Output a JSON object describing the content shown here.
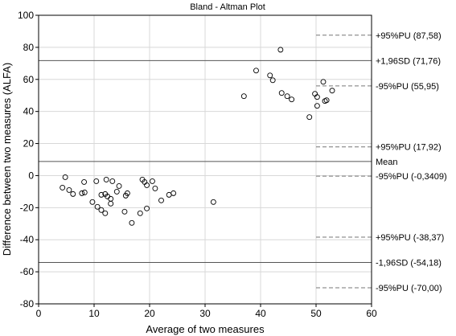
{
  "chart_data": {
    "type": "scatter",
    "title": "Bland - Altman Plot",
    "xlabel": "Average of two measures",
    "ylabel": "Difference between two measures (ALFA)",
    "xlim": [
      0,
      60
    ],
    "ylim": [
      -80,
      100
    ],
    "xticks": [
      0,
      10,
      20,
      30,
      40,
      50,
      60
    ],
    "yticks": [
      -80,
      -60,
      -40,
      -20,
      0,
      20,
      40,
      60,
      80,
      100
    ],
    "grid": true,
    "points": [
      {
        "x": 4.3,
        "y": -7.5
      },
      {
        "x": 4.8,
        "y": -1
      },
      {
        "x": 5.5,
        "y": -9
      },
      {
        "x": 6.2,
        "y": -11.5
      },
      {
        "x": 7.8,
        "y": -11
      },
      {
        "x": 8.2,
        "y": -4
      },
      {
        "x": 8.3,
        "y": -10.5
      },
      {
        "x": 9.7,
        "y": -16.5
      },
      {
        "x": 10.4,
        "y": -3.5
      },
      {
        "x": 10.6,
        "y": -19.5
      },
      {
        "x": 11.3,
        "y": -21.5
      },
      {
        "x": 11.3,
        "y": -12
      },
      {
        "x": 12.0,
        "y": -11.5
      },
      {
        "x": 12.0,
        "y": -23.5
      },
      {
        "x": 12.2,
        "y": -2.5
      },
      {
        "x": 12.4,
        "y": -13
      },
      {
        "x": 13.0,
        "y": -17.5
      },
      {
        "x": 13.0,
        "y": -14.5
      },
      {
        "x": 13.3,
        "y": -3.5
      },
      {
        "x": 14.1,
        "y": -10
      },
      {
        "x": 14.5,
        "y": -6.5
      },
      {
        "x": 15.5,
        "y": -22.5
      },
      {
        "x": 15.7,
        "y": -12.5
      },
      {
        "x": 16.0,
        "y": -11
      },
      {
        "x": 16.8,
        "y": -29.5
      },
      {
        "x": 18.3,
        "y": -23.5
      },
      {
        "x": 18.7,
        "y": -2.5
      },
      {
        "x": 19.1,
        "y": -4
      },
      {
        "x": 19.5,
        "y": -20.5
      },
      {
        "x": 19.5,
        "y": -6
      },
      {
        "x": 20.5,
        "y": -3.5
      },
      {
        "x": 21.0,
        "y": -8
      },
      {
        "x": 22.1,
        "y": -15.5
      },
      {
        "x": 23.5,
        "y": -12
      },
      {
        "x": 24.3,
        "y": -11
      },
      {
        "x": 31.5,
        "y": -16.5
      },
      {
        "x": 37.0,
        "y": 49.5
      },
      {
        "x": 39.2,
        "y": 65.5
      },
      {
        "x": 41.7,
        "y": 62.5
      },
      {
        "x": 42.2,
        "y": 59.5
      },
      {
        "x": 43.6,
        "y": 78.5
      },
      {
        "x": 43.8,
        "y": 51.5
      },
      {
        "x": 44.8,
        "y": 49.5
      },
      {
        "x": 45.6,
        "y": 47.5
      },
      {
        "x": 48.8,
        "y": 36.5
      },
      {
        "x": 49.8,
        "y": 51
      },
      {
        "x": 50.2,
        "y": 49
      },
      {
        "x": 50.2,
        "y": 43.5
      },
      {
        "x": 51.3,
        "y": 58.5
      },
      {
        "x": 51.6,
        "y": 46.5
      },
      {
        "x": 51.9,
        "y": 47
      },
      {
        "x": 52.9,
        "y": 53
      }
    ],
    "reference_lines": [
      {
        "y": 87.58,
        "style": "dashed",
        "x_start": 50,
        "label": "+95%PU (87,58)"
      },
      {
        "y": 71.76,
        "style": "solid",
        "label": "+1,96SD (71,76)"
      },
      {
        "y": 55.95,
        "style": "dashed",
        "x_start": 50,
        "label": "-95%PU (55,95)"
      },
      {
        "y": 17.92,
        "style": "dashed",
        "x_start": 50,
        "label": "+95%PU (17,92)"
      },
      {
        "y": 8.79,
        "style": "solid",
        "label": "Mean"
      },
      {
        "y": -0.3409,
        "style": "dashed",
        "x_start": 50,
        "label": "-95%PU (-0,3409)"
      },
      {
        "y": -38.37,
        "style": "dashed",
        "x_start": 50,
        "label": "+95%PU (-38,37)"
      },
      {
        "y": -54.18,
        "style": "solid",
        "label": "-1,96SD (-54,18)"
      },
      {
        "y": -70.0,
        "style": "dashed",
        "x_start": 50,
        "label": "-95%PU (-70,00)"
      }
    ],
    "colors": {
      "points": "#000000",
      "solid_line": "#555555",
      "dashed_line": "#777777",
      "grid": "#d8d8d8"
    }
  }
}
